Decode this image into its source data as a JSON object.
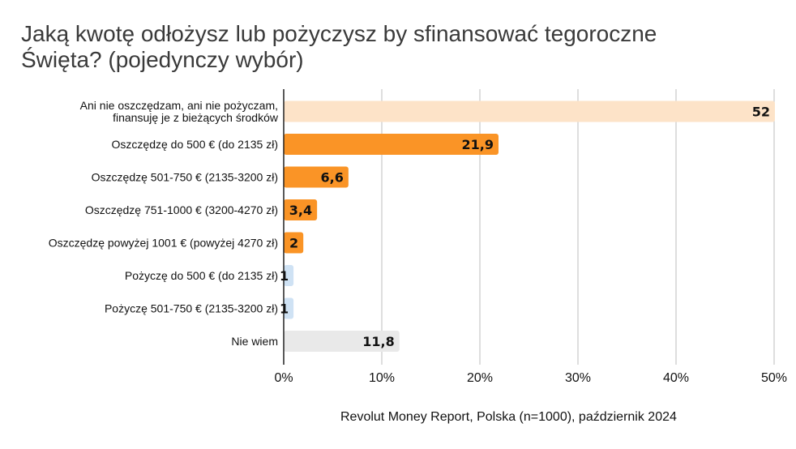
{
  "title_lines": [
    "Jaką kwotę odłożysz lub pożyczysz by sfinansować tegoroczne",
    "Święta? (pojedynczy wybór)"
  ],
  "source": "Revolut Money Report, Polska (n=1000), październik 2024",
  "colors": {
    "grid": "#c8c8c8",
    "axis": "#222222",
    "label": "#111111",
    "value": "#111111"
  },
  "chart_data": {
    "type": "bar",
    "orientation": "horizontal",
    "title": "Jaką kwotę odłożysz lub pożyczysz by sfinansować tegoroczne Święta? (pojedynczy wybór)",
    "xlim": [
      0,
      50
    ],
    "x_ticks": [
      0,
      10,
      20,
      30,
      40,
      50
    ],
    "x_tick_labels": [
      "0%",
      "10%",
      "20%",
      "30%",
      "40%",
      "50%"
    ],
    "grid": "vertical",
    "categories": [
      [
        "Ani nie oszczędzam, ani nie pożyczam,",
        "finansuję je z bieżących środków"
      ],
      [
        "Oszczędzę do 500 € (do 2135 zł)"
      ],
      [
        "Oszczędzę 501-750 € (2135-3200 zł)"
      ],
      [
        "Oszczędzę 751-1000 € (3200-4270 zł)"
      ],
      [
        "Oszczędzę powyżej 1001 € (powyżej 4270 zł)"
      ],
      [
        "Pożyczę do 500 € (do 2135 zł)"
      ],
      [
        "Pożyczę 501-750 € (2135-3200 zł)"
      ],
      [
        "Nie wiem"
      ]
    ],
    "values": [
      52,
      21.9,
      6.6,
      3.4,
      2,
      1,
      1,
      11.8
    ],
    "value_labels": [
      "52",
      "21,9",
      "6,6",
      "3,4",
      "2",
      "1",
      "1",
      "11,8"
    ],
    "bar_colors": [
      "#fde3c8",
      "#fa9426",
      "#fa9426",
      "#fa9426",
      "#fa9426",
      "#cfe2f4",
      "#cfe2f4",
      "#e9e9e9"
    ]
  }
}
